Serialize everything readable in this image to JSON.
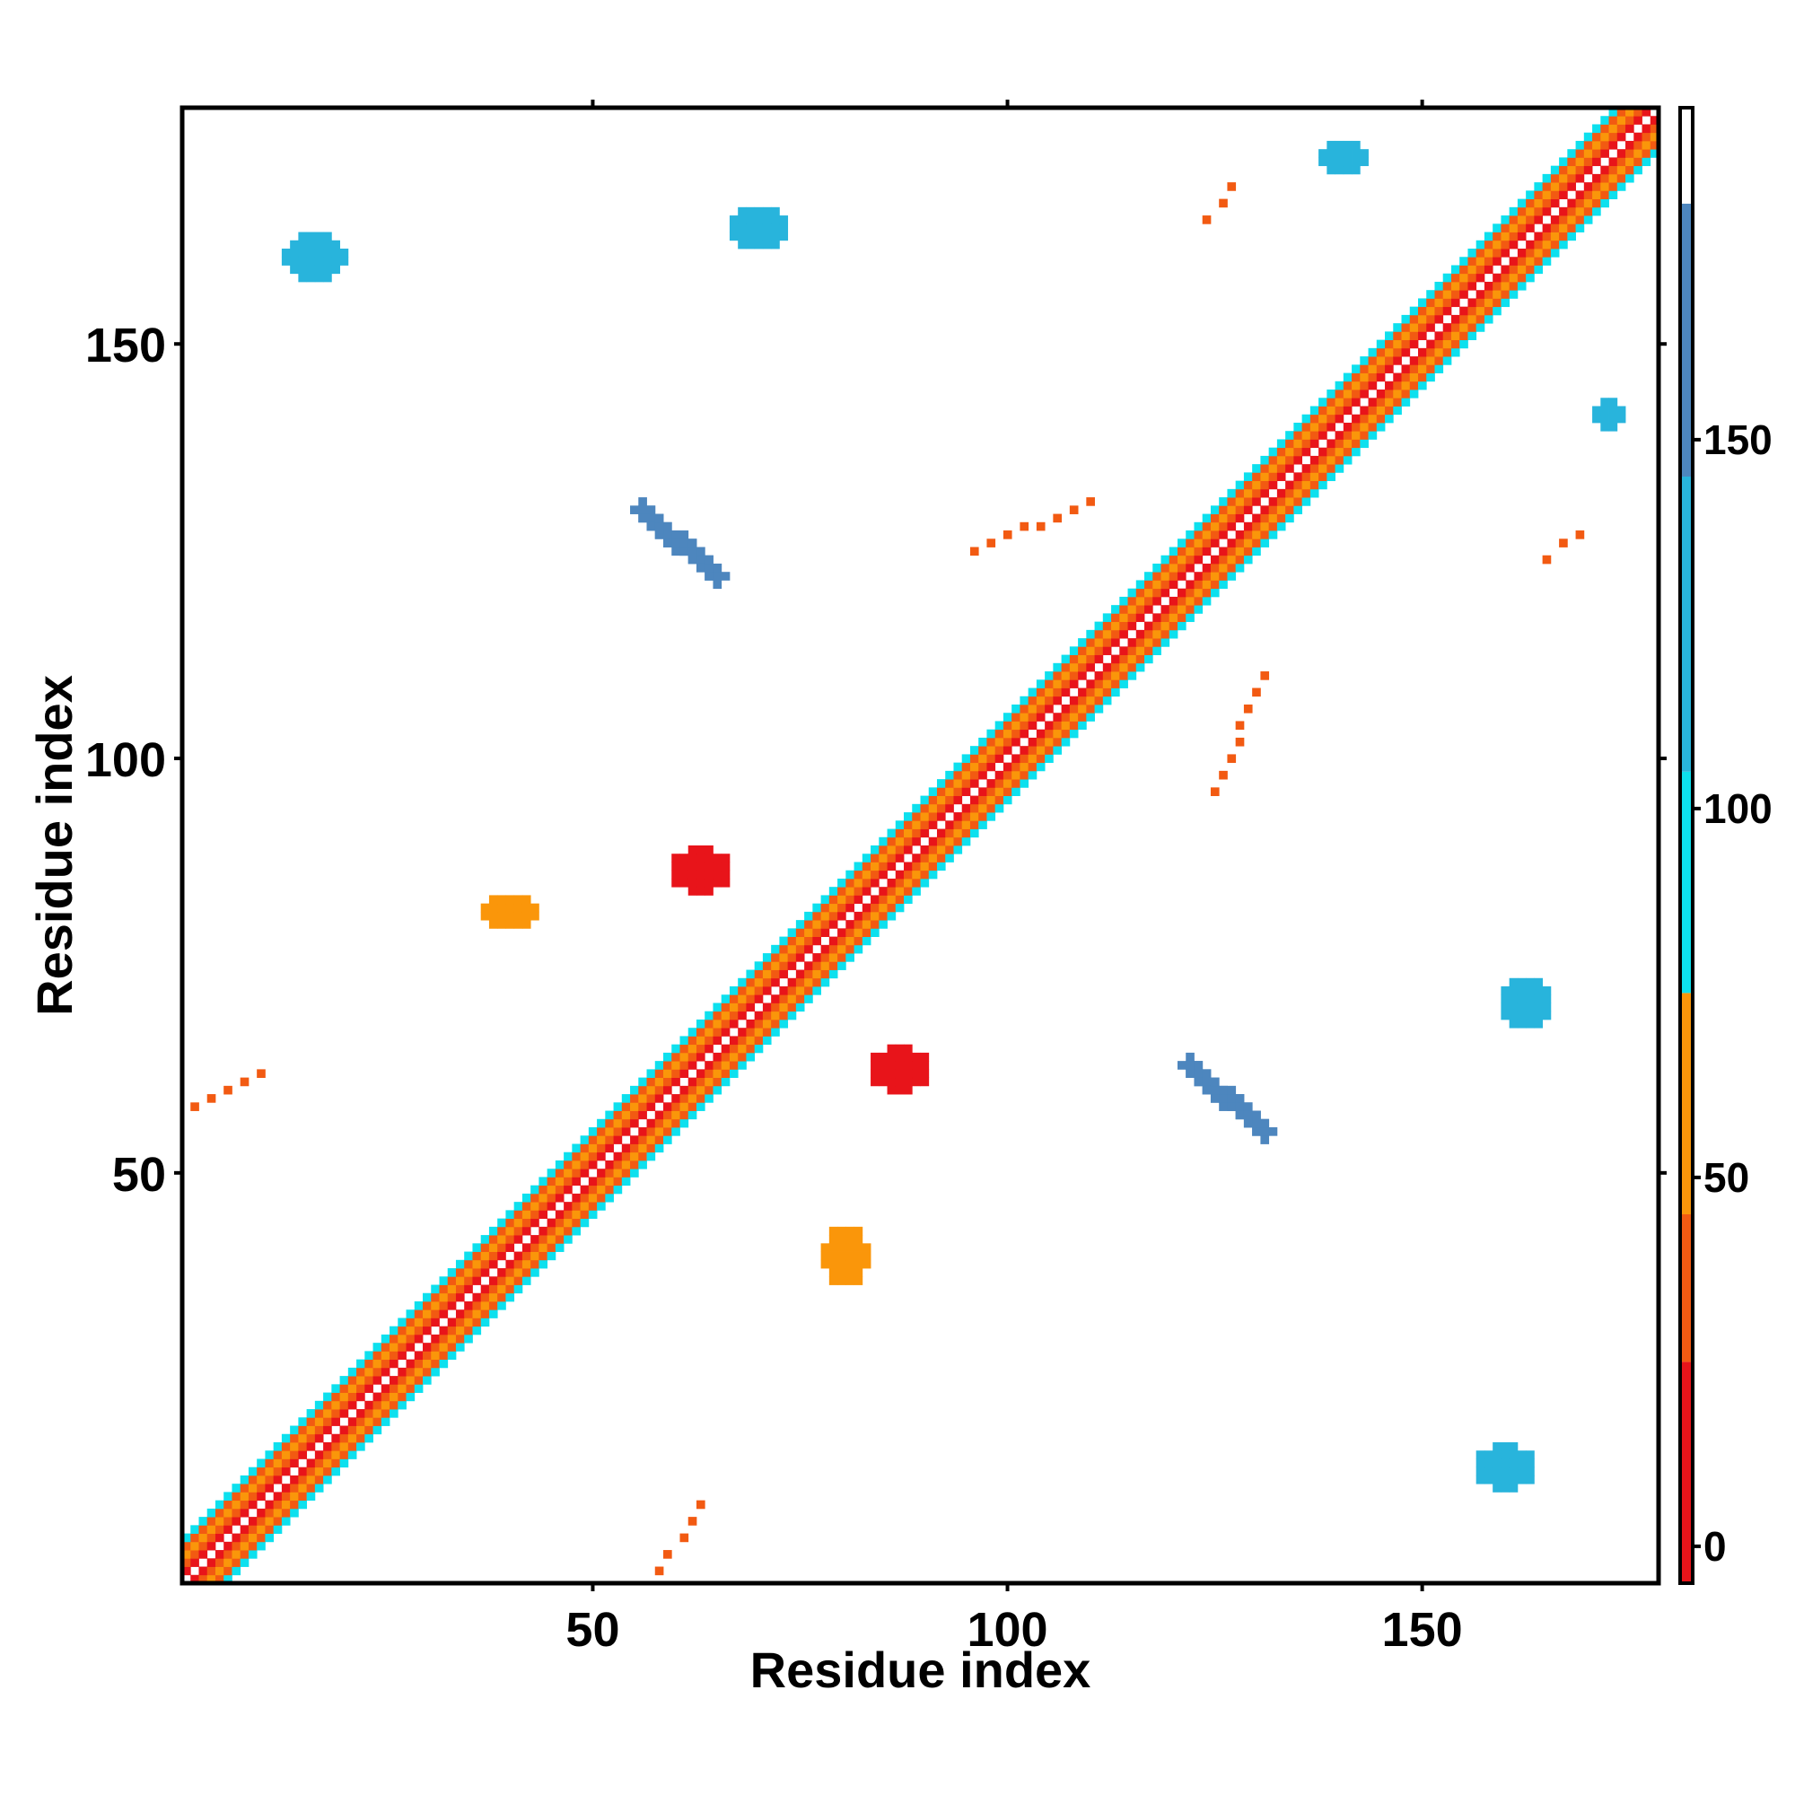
{
  "chart_data": {
    "type": "heatmap",
    "title": "",
    "xlabel": "Residue index",
    "ylabel": "Residue index",
    "xlim": [
      1,
      178
    ],
    "ylim": [
      1,
      178
    ],
    "x_ticks": [
      50,
      100,
      150
    ],
    "y_ticks": [
      50,
      100,
      150
    ],
    "colorbar": {
      "ticks": [
        0,
        50,
        100,
        150
      ],
      "range": [
        -5,
        195
      ],
      "bands": [
        {
          "from": -5,
          "to": 25,
          "color": "#e8141a"
        },
        {
          "from": 25,
          "to": 45,
          "color": "#f25a12"
        },
        {
          "from": 45,
          "to": 75,
          "color": "#fa960a"
        },
        {
          "from": 75,
          "to": 105,
          "color": "#0de0ee"
        },
        {
          "from": 105,
          "to": 145,
          "color": "#28b4dc"
        },
        {
          "from": 145,
          "to": 182,
          "color": "#4d86be"
        },
        {
          "from": 182,
          "to": 195,
          "color": "#ffffff"
        }
      ]
    },
    "diagonal_band_colors": [
      "#e8141a",
      "#f25a12",
      "#fa960a",
      "#f25a12",
      "#0de0ee"
    ],
    "blocks": [
      {
        "x": [
          56,
          65
        ],
        "y": [
          122,
          130
        ],
        "value": 165,
        "shape": "diagonal-strip"
      },
      {
        "x": [
          122,
          131
        ],
        "y": [
          55,
          63
        ],
        "value": 165,
        "shape": "diagonal-strip"
      },
      {
        "x": [
          60,
          66
        ],
        "y": [
          84,
          89
        ],
        "value": 5,
        "shape": "blob"
      },
      {
        "x": [
          84,
          90
        ],
        "y": [
          60,
          65
        ],
        "value": 5,
        "shape": "blob"
      },
      {
        "x": [
          13,
          20
        ],
        "y": [
          158,
          163
        ],
        "value": 110,
        "shape": "blob"
      },
      {
        "x": [
          67,
          73
        ],
        "y": [
          162,
          166
        ],
        "value": 110,
        "shape": "blob"
      },
      {
        "x": [
          157,
          163
        ],
        "y": [
          12,
          17
        ],
        "value": 110,
        "shape": "blob"
      },
      {
        "x": [
          160,
          165
        ],
        "y": [
          68,
          73
        ],
        "value": 110,
        "shape": "blob"
      },
      {
        "x": [
          138,
          143
        ],
        "y": [
          171,
          174
        ],
        "value": 120,
        "shape": "blob"
      },
      {
        "x": [
          171,
          174
        ],
        "y": [
          140,
          143
        ],
        "value": 120,
        "shape": "blob"
      },
      {
        "x": [
          124,
          128
        ],
        "y": [
          165,
          170
        ],
        "value": 30,
        "shape": "streak"
      },
      {
        "x": [
          165,
          170
        ],
        "y": [
          124,
          128
        ],
        "value": 30,
        "shape": "streak"
      },
      {
        "x": [
          37,
          43
        ],
        "y": [
          80,
          83
        ],
        "value": 60,
        "shape": "blob"
      },
      {
        "x": [
          78,
          83
        ],
        "y": [
          37,
          43
        ],
        "value": 60,
        "shape": "blob"
      },
      {
        "x": [
          2,
          11
        ],
        "y": [
          58,
          62
        ],
        "value": 30,
        "shape": "streak"
      },
      {
        "x": [
          58,
          63
        ],
        "y": [
          2,
          10
        ],
        "value": 30,
        "shape": "streak"
      },
      {
        "x": [
          96,
          110
        ],
        "y": [
          125,
          131
        ],
        "value": 30,
        "shape": "streak"
      },
      {
        "x": [
          125,
          131
        ],
        "y": [
          96,
          110
        ],
        "value": 30,
        "shape": "streak"
      }
    ]
  }
}
